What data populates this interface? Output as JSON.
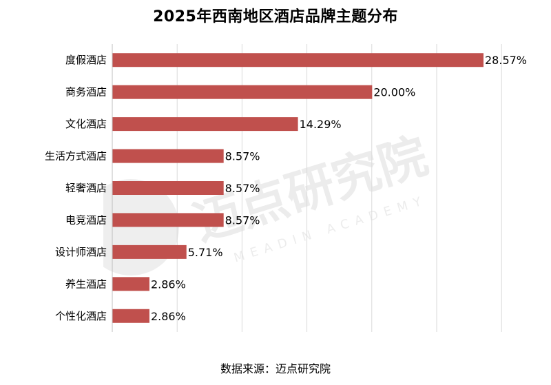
{
  "watermark": {
    "text": "迈点研究院",
    "subtext": "MEADIN ACADEMY"
  },
  "source": "数据来源：迈点研究院",
  "colors": {
    "bar": "#c0504d",
    "grid": "#d9d9d9",
    "axis": "#bfbfbf"
  },
  "chart_data": {
    "type": "bar",
    "orientation": "horizontal",
    "title": "2025年西南地区酒店品牌主题分布",
    "categories": [
      "度假酒店",
      "商务酒店",
      "文化酒店",
      "生活方式酒店",
      "轻奢酒店",
      "电竞酒店",
      "设计师酒店",
      "养生酒店",
      "个性化酒店"
    ],
    "values": [
      28.57,
      20.0,
      14.29,
      8.57,
      8.57,
      8.57,
      5.71,
      2.86,
      2.86
    ],
    "labels": [
      "28.57%",
      "20.00%",
      "14.29%",
      "8.57%",
      "8.57%",
      "8.57%",
      "5.71%",
      "2.86%",
      "2.86%"
    ],
    "xlim": [
      0,
      30
    ],
    "grid": true,
    "legend": "none"
  }
}
